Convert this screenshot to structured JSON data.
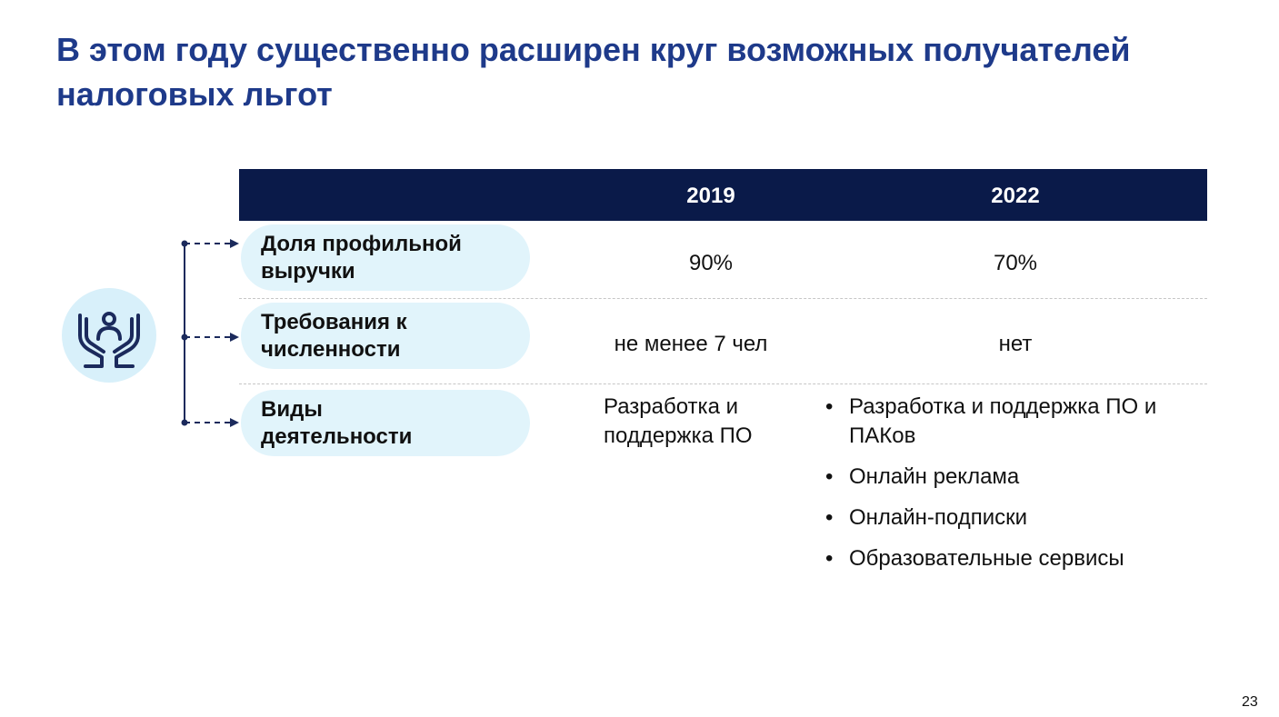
{
  "slide": {
    "title": "В этом году существенно расширен круг возможных получателей налоговых льгот",
    "page_number": "23"
  },
  "table": {
    "columns": [
      "2019",
      "2022"
    ],
    "rows": [
      {
        "label": "Доля профильной выручки",
        "y2019": "90%",
        "y2022": "70%"
      },
      {
        "label": "Требования к численности",
        "y2019": "не менее 7 чел",
        "y2022": "нет"
      },
      {
        "label": "Виды деятельности",
        "y2019": "Разработка и поддержка ПО",
        "y2022_items": [
          "Разработка и поддержка ПО и ПАКов",
          "Онлайн реклама",
          "Онлайн-подписки",
          "Образовательные сервисы"
        ]
      }
    ]
  },
  "icon": {
    "name": "hands-people-icon"
  },
  "colors": {
    "title": "#1e3a8a",
    "header_bg": "#0a1a49",
    "pill_bg": "#e1f4fb",
    "icon_stroke": "#1b2a5c"
  }
}
